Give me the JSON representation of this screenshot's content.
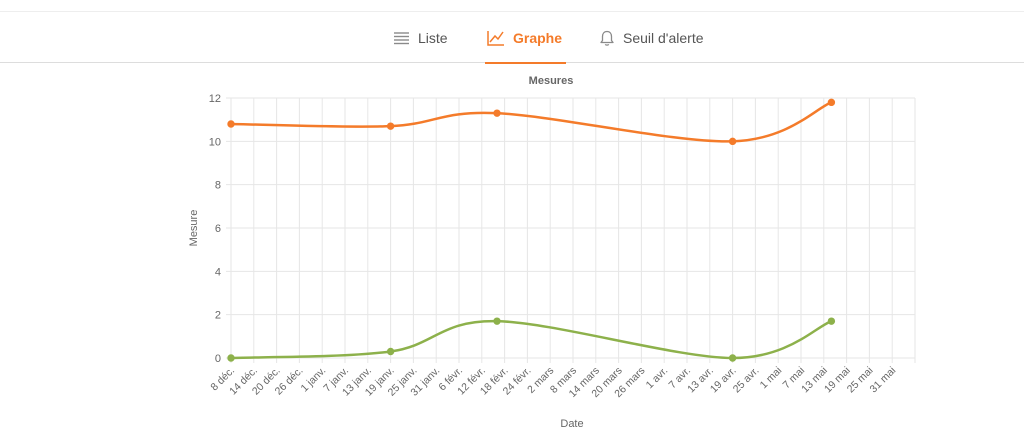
{
  "tabs": [
    {
      "label": "Liste",
      "icon": "list-icon",
      "active": false
    },
    {
      "label": "Graphe",
      "icon": "chart-line-icon",
      "active": true
    },
    {
      "label": "Seuil d'alerte",
      "icon": "bell-icon",
      "active": false
    }
  ],
  "colors": {
    "accent": "#f47b2a",
    "series_orange": "#f47b2a",
    "series_green": "#8db14b"
  },
  "chart_data": {
    "type": "line",
    "title": "Mesures",
    "xlabel": "Date",
    "ylabel": "Mesure",
    "ylim": [
      0,
      12
    ],
    "yticks": [
      0,
      2,
      4,
      6,
      8,
      10,
      12
    ],
    "xticks": [
      "8 déc.",
      "14 déc.",
      "20 déc.",
      "26 déc.",
      "1 janv.",
      "7 janv.",
      "13 janv.",
      "19 janv.",
      "25 janv.",
      "31 janv.",
      "6 févr.",
      "12 févr.",
      "18 févr.",
      "24 févr.",
      "2 mars",
      "8 mars",
      "14 mars",
      "20 mars",
      "26 mars",
      "1 avr.",
      "7 avr.",
      "13 avr.",
      "19 avr.",
      "25 avr.",
      "1 mai",
      "7 mai",
      "13 mai",
      "19 mai",
      "25 mai",
      "31 mai"
    ],
    "grid": true,
    "legend": "none",
    "series": [
      {
        "color": "#f47b2a",
        "points": [
          {
            "x": "8 déc.",
            "y": 10.8
          },
          {
            "x": "19 janv.",
            "y": 10.7
          },
          {
            "x": "16 févr.",
            "y": 11.3
          },
          {
            "x": "19 avr.",
            "y": 10.0
          },
          {
            "x": "15 mai",
            "y": 11.8
          }
        ]
      },
      {
        "color": "#8db14b",
        "points": [
          {
            "x": "8 déc.",
            "y": 0.0
          },
          {
            "x": "19 janv.",
            "y": 0.3
          },
          {
            "x": "16 févr.",
            "y": 1.7
          },
          {
            "x": "19 avr.",
            "y": 0.0
          },
          {
            "x": "15 mai",
            "y": 1.7
          }
        ]
      }
    ]
  }
}
